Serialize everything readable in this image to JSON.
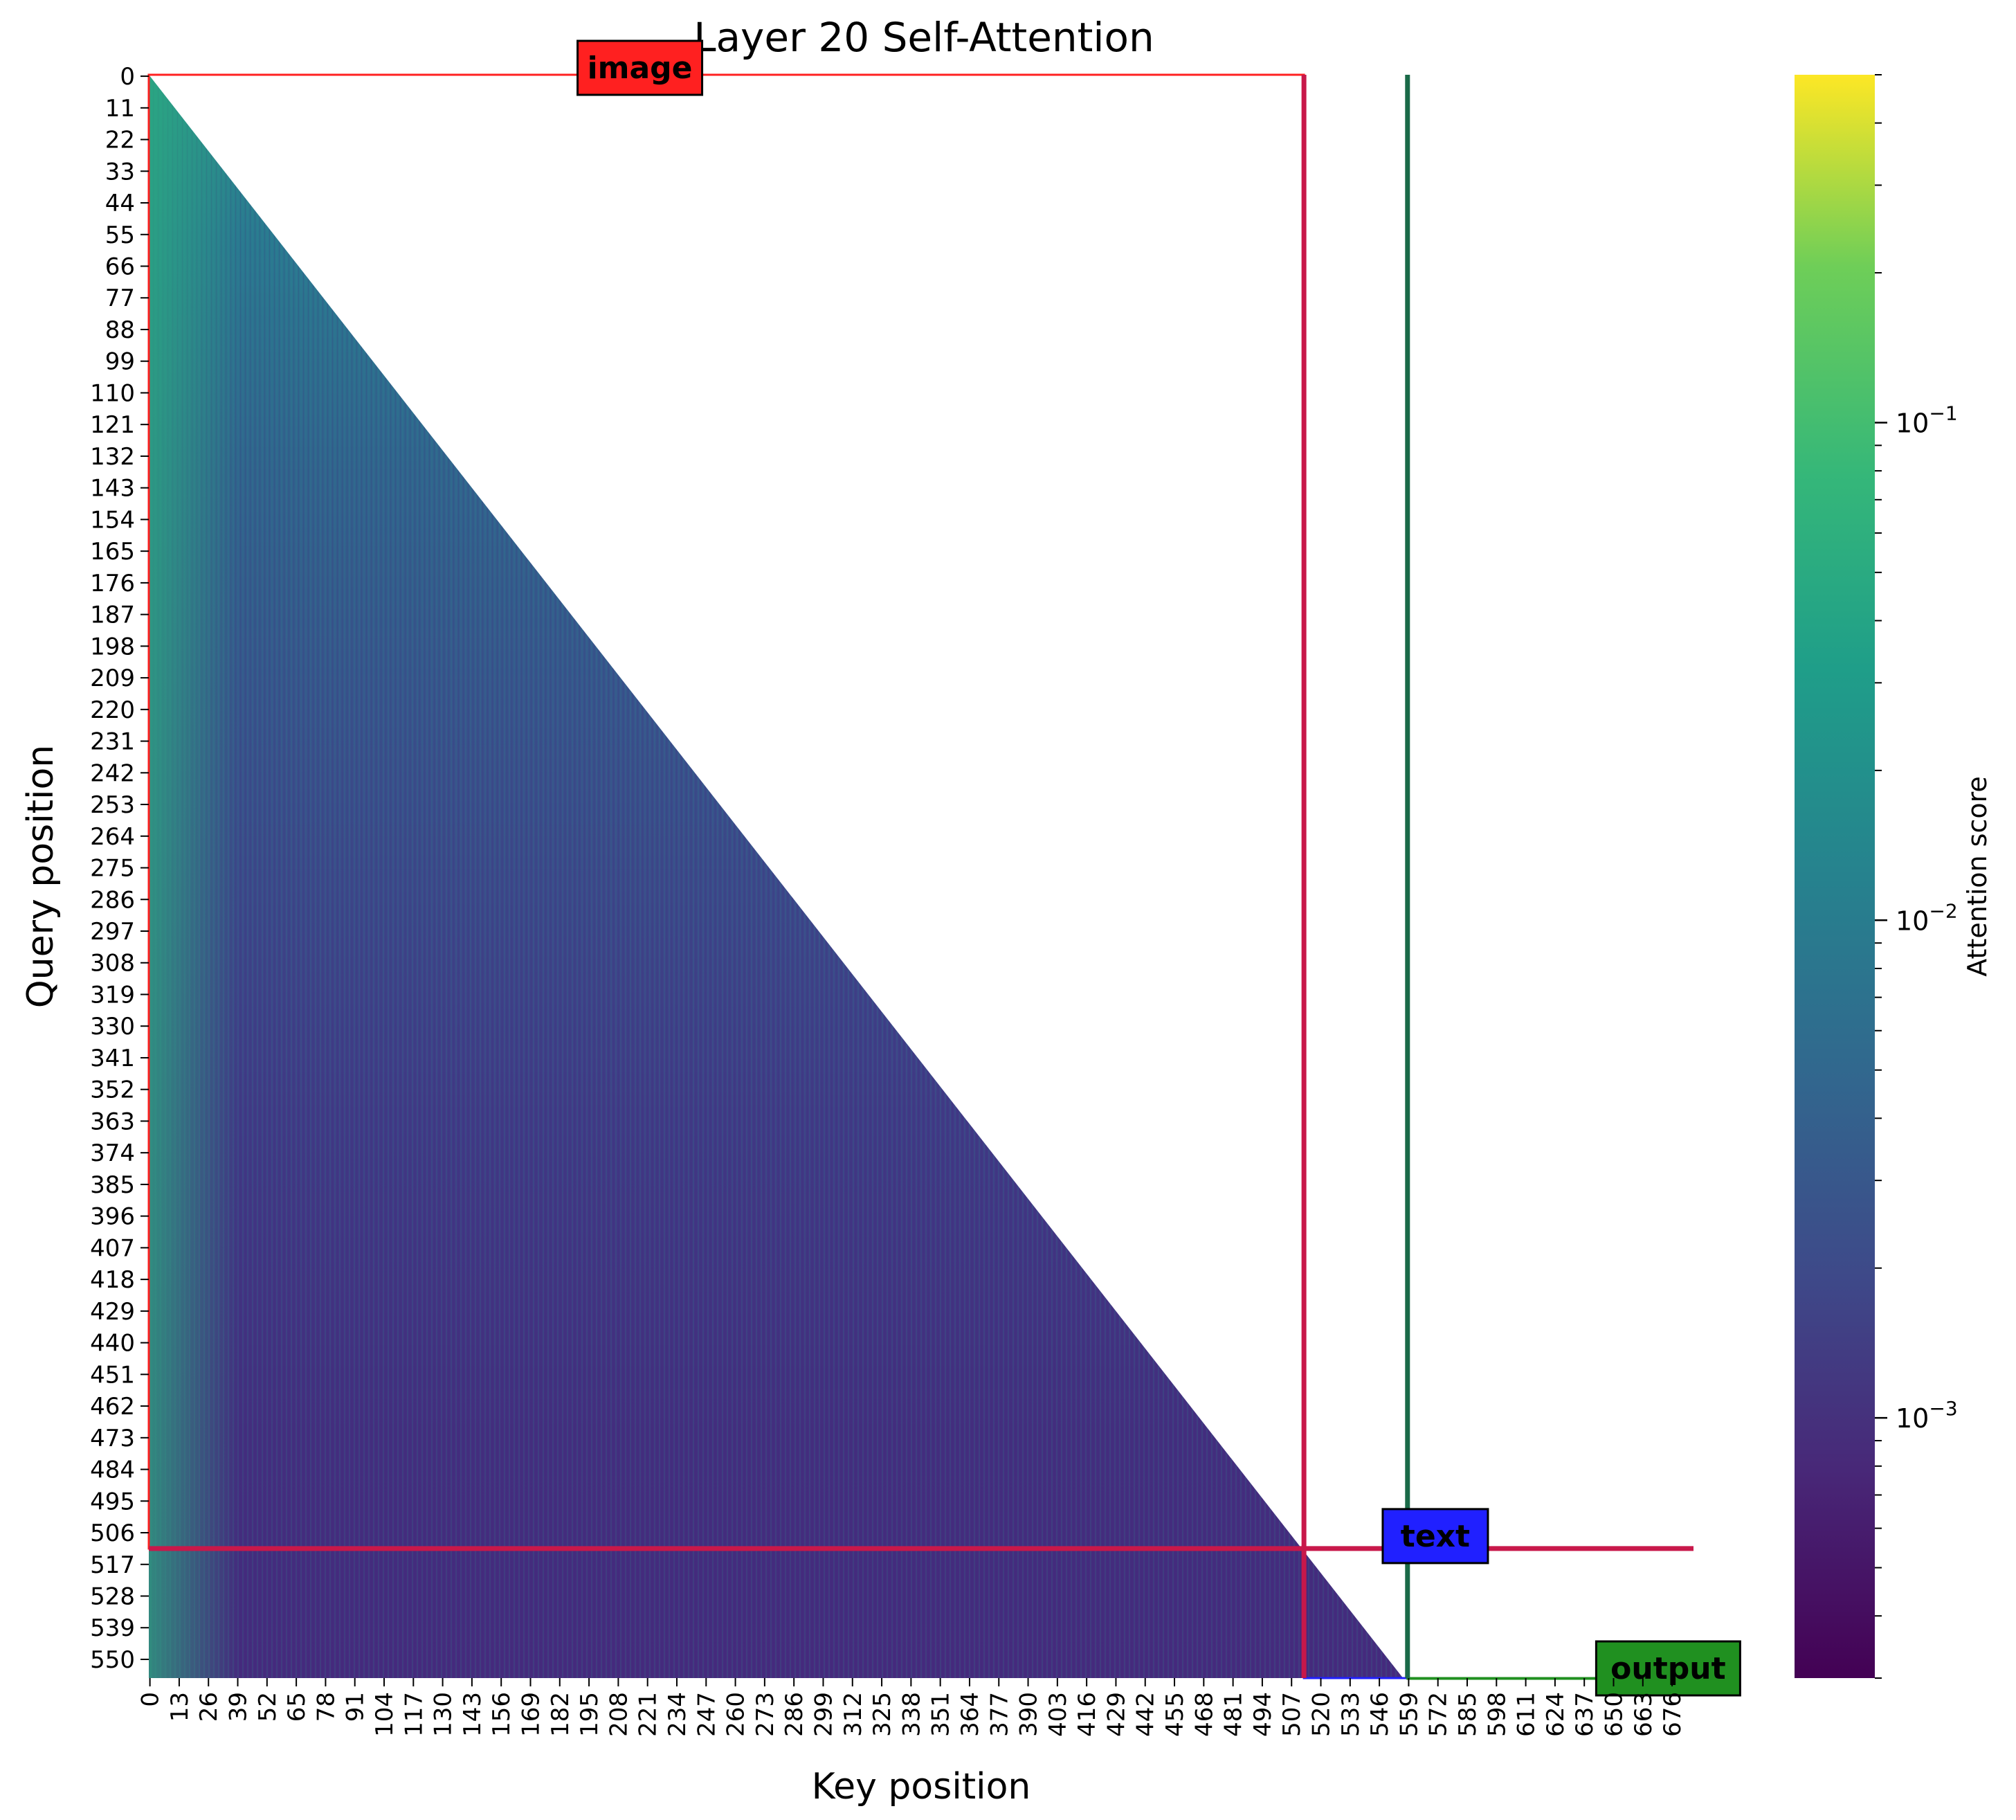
{
  "chart_data": {
    "type": "heatmap",
    "title": "Layer 20 Self-Attention",
    "xlabel": "Key position",
    "ylabel": "Query position",
    "colorbar_label": "Attention score",
    "colormap": "viridis",
    "color_scale": "log",
    "color_range": [
      0.0003,
      0.5
    ],
    "colorbar_ticks": [
      {
        "value": 0.1,
        "base": "10",
        "exp": "−1"
      },
      {
        "value": 0.01,
        "base": "10",
        "exp": "−2"
      },
      {
        "value": 0.001,
        "base": "10",
        "exp": "−3"
      }
    ],
    "x_range": [
      0,
      686
    ],
    "y_range": [
      0,
      557
    ],
    "x_ticks": [
      "0",
      "13",
      "26",
      "39",
      "52",
      "65",
      "78",
      "91",
      "104",
      "117",
      "130",
      "143",
      "156",
      "169",
      "182",
      "195",
      "208",
      "221",
      "234",
      "247",
      "260",
      "273",
      "286",
      "299",
      "312",
      "325",
      "338",
      "351",
      "364",
      "377",
      "390",
      "403",
      "416",
      "429",
      "442",
      "455",
      "468",
      "481",
      "494",
      "507",
      "520",
      "533",
      "546",
      "559",
      "572",
      "585",
      "598",
      "611",
      "624",
      "637",
      "650",
      "663",
      "676"
    ],
    "y_ticks": [
      "0",
      "11",
      "22",
      "33",
      "44",
      "55",
      "66",
      "77",
      "88",
      "99",
      "110",
      "121",
      "132",
      "143",
      "154",
      "165",
      "176",
      "187",
      "198",
      "209",
      "220",
      "231",
      "242",
      "253",
      "264",
      "275",
      "286",
      "297",
      "308",
      "319",
      "330",
      "341",
      "352",
      "363",
      "374",
      "385",
      "396",
      "407",
      "418",
      "429",
      "440",
      "451",
      "462",
      "473",
      "484",
      "495",
      "506",
      "517",
      "528",
      "539",
      "550"
    ],
    "masking": "causal (key position > query position left blank)",
    "approx_attention_levels": {
      "first_rows_near_key_0": 0.1,
      "image_rows_0_to_100": 0.01,
      "image_rows_200_to_400": 0.002,
      "rows_400_to_557": 0.001
    },
    "regions": [
      {
        "name": "image",
        "color": "#ff2020",
        "key_start": 0,
        "key_end": 513,
        "query_start": 0,
        "query_end": 512
      },
      {
        "name": "text",
        "color": "#2020ff",
        "key_start": 513,
        "key_end": 559,
        "query_start": 512,
        "query_end": 557
      },
      {
        "name": "output",
        "color": "#209020",
        "key_start": 559,
        "key_end": 686,
        "query_start": 557,
        "query_end": 557
      }
    ],
    "boundary_lines": [
      {
        "orientation": "vertical",
        "key": 513,
        "color": "#c8184a"
      },
      {
        "orientation": "horizontal",
        "query": 512,
        "color": "#c8184a"
      },
      {
        "orientation": "vertical",
        "key": 559,
        "color": "#1a6a48"
      }
    ],
    "region_labels": [
      {
        "text": "image",
        "bg": "#ff2020"
      },
      {
        "text": "text",
        "bg": "#2020ff"
      },
      {
        "text": "output",
        "bg": "#209020"
      }
    ]
  }
}
